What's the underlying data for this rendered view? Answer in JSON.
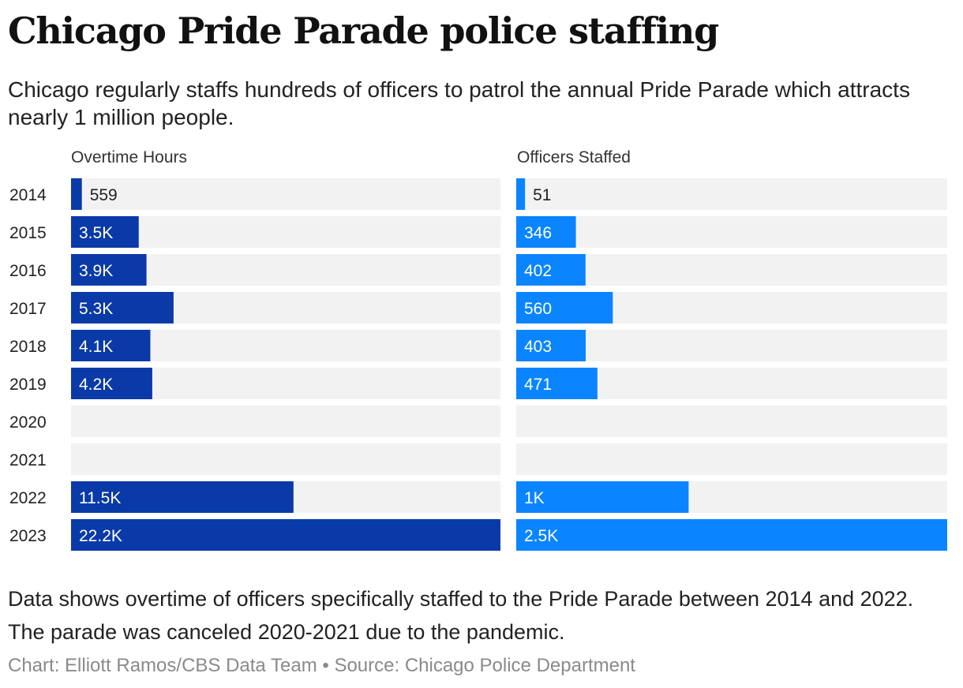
{
  "title": "Chicago Pride Parade police staffing",
  "subtitle": "Chicago regularly staffs hundreds of officers to patrol the annual Pride Parade which attracts nearly 1 million people.",
  "note": "Data shows overtime of officers specifically staffed to the Pride Parade between 2014 and 2022. The parade was canceled 2020-2021 due to the pandemic.",
  "credit": "Chart: Elliott Ramos/CBS Data Team • Source: Chicago Police Department",
  "colors": {
    "overtime": "#0a3aa8",
    "officers": "#0a85ff",
    "track": "#f2f2f2"
  },
  "chart_data": {
    "type": "bar",
    "orientation": "horizontal",
    "categories": [
      "2014",
      "2015",
      "2016",
      "2017",
      "2018",
      "2019",
      "2020",
      "2021",
      "2022",
      "2023"
    ],
    "series": [
      {
        "name": "Overtime Hours",
        "values": [
          559,
          3500,
          3900,
          5300,
          4100,
          4200,
          null,
          null,
          11500,
          22200
        ],
        "labels": [
          "559",
          "3.5K",
          "3.9K",
          "5.3K",
          "4.1K",
          "4.2K",
          "",
          "",
          "11.5K",
          "22.2K"
        ],
        "xlim": [
          0,
          22200
        ]
      },
      {
        "name": "Officers Staffed",
        "values": [
          51,
          346,
          402,
          560,
          403,
          471,
          null,
          null,
          1000,
          2500
        ],
        "labels": [
          "51",
          "346",
          "402",
          "560",
          "403",
          "471",
          "",
          "",
          "1K",
          "2.5K"
        ],
        "xlim": [
          0,
          2500
        ]
      }
    ]
  }
}
